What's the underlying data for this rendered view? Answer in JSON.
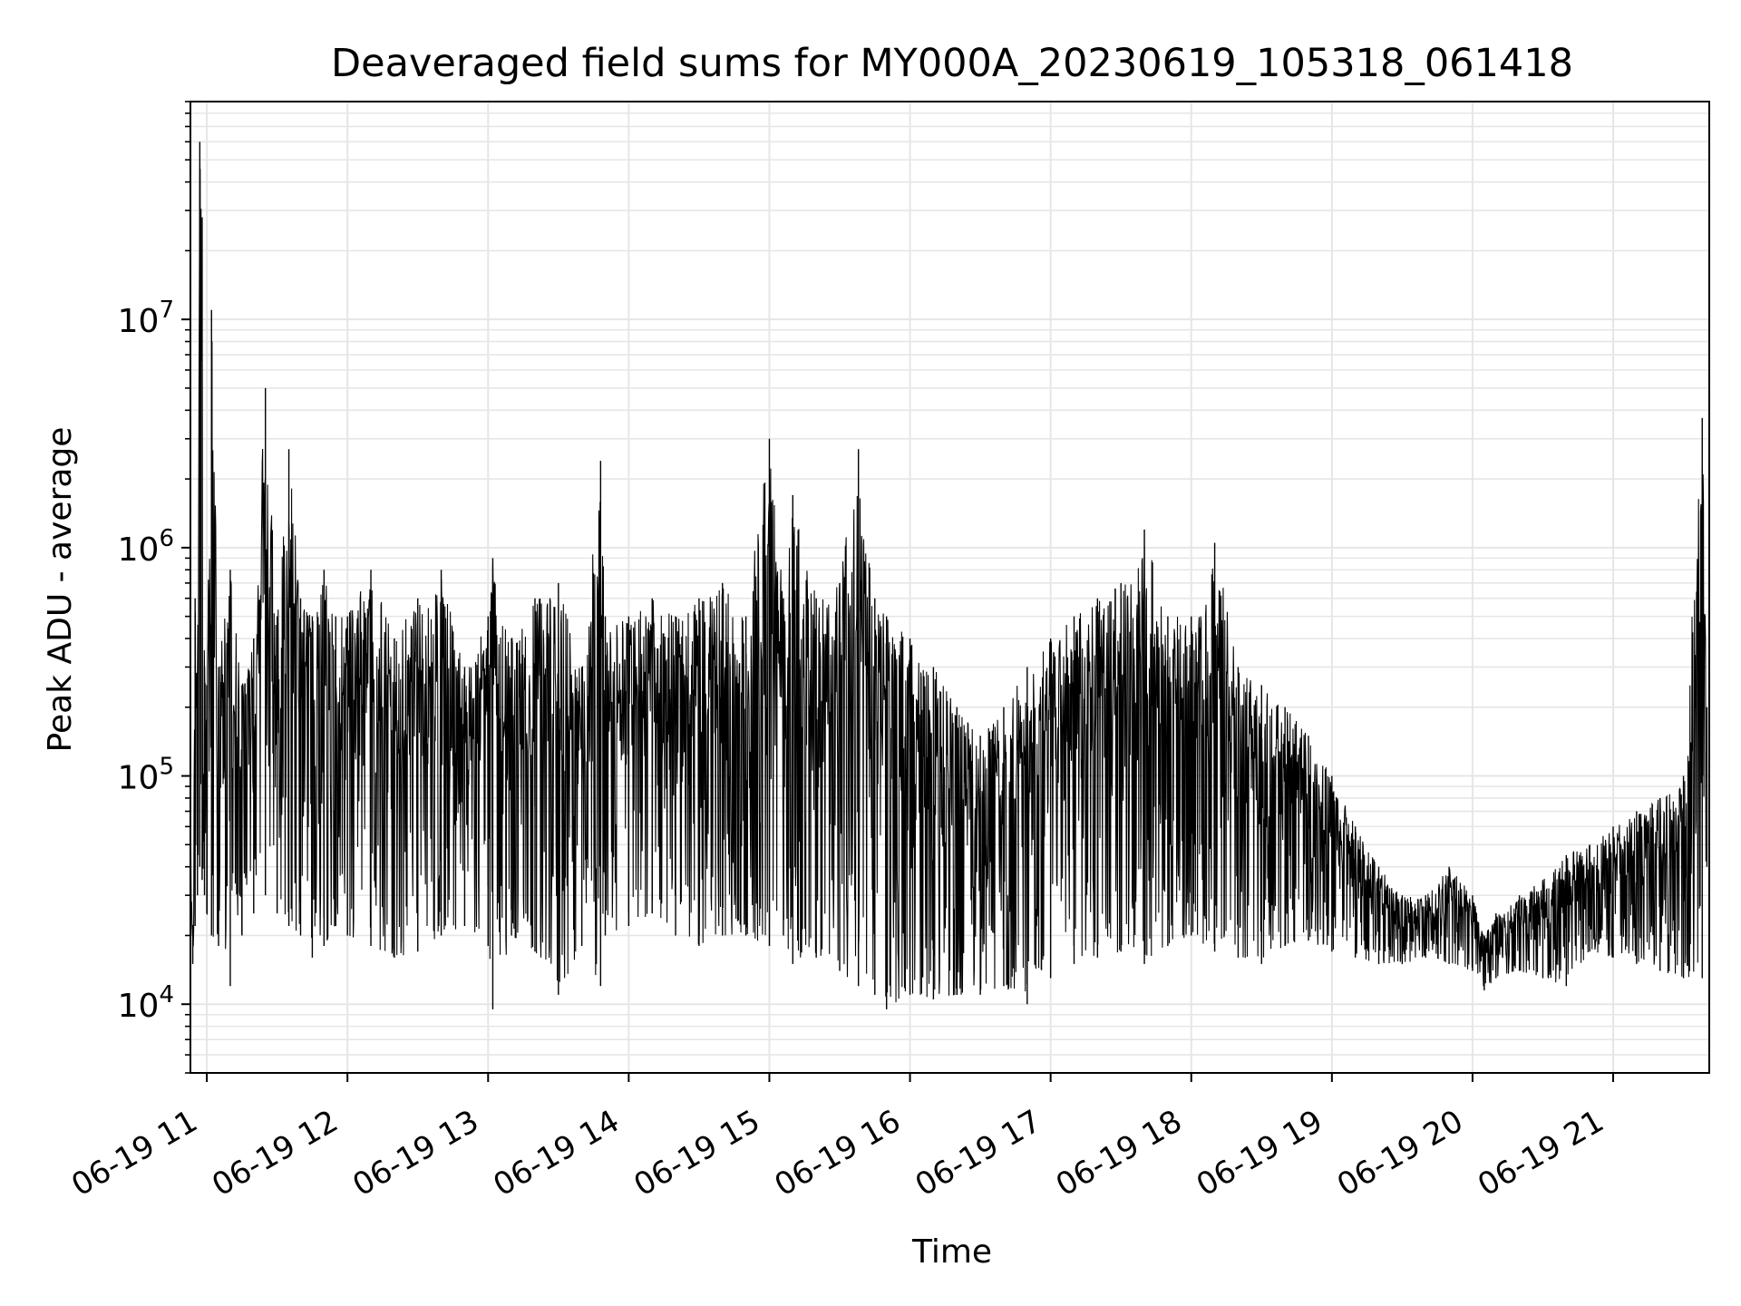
{
  "chart_data": {
    "type": "line",
    "title": "Deaveraged field sums for MY000A_20230619_105318_061418",
    "xlabel": "Time",
    "ylabel": "Peak ADU - average",
    "yscale": "log",
    "ylim": [
      5000,
      90000000
    ],
    "xlim": [
      "2023-06-19 10:53",
      "2023-06-19 21:41"
    ],
    "grid": true,
    "line_color": "#000000",
    "grid_color": "#e6e6e6",
    "x_ticks": [
      {
        "value": "2023-06-19 11:00",
        "label": "06-19 11"
      },
      {
        "value": "2023-06-19 12:00",
        "label": "06-19 12"
      },
      {
        "value": "2023-06-19 13:00",
        "label": "06-19 13"
      },
      {
        "value": "2023-06-19 14:00",
        "label": "06-19 14"
      },
      {
        "value": "2023-06-19 15:00",
        "label": "06-19 15"
      },
      {
        "value": "2023-06-19 16:00",
        "label": "06-19 16"
      },
      {
        "value": "2023-06-19 17:00",
        "label": "06-19 17"
      },
      {
        "value": "2023-06-19 18:00",
        "label": "06-19 18"
      },
      {
        "value": "2023-06-19 19:00",
        "label": "06-19 19"
      },
      {
        "value": "2023-06-19 20:00",
        "label": "06-19 20"
      },
      {
        "value": "2023-06-19 21:00",
        "label": "06-19 21"
      }
    ],
    "y_ticks": [
      {
        "value": 10000,
        "base": "10",
        "exp": "4"
      },
      {
        "value": 100000,
        "base": "10",
        "exp": "5"
      },
      {
        "value": 1000000,
        "base": "10",
        "exp": "6"
      },
      {
        "value": 10000000,
        "base": "10",
        "exp": "7"
      }
    ],
    "series": [
      {
        "x": [
          "2023-06-19 10:53",
          "2023-06-19 10:54",
          "2023-06-19 10:55",
          "2023-06-19 10:56",
          "2023-06-19 10:57",
          "2023-06-19 10:58",
          "2023-06-19 10:59",
          "2023-06-19 11:00",
          "2023-06-19 11:02",
          "2023-06-19 11:05",
          "2023-06-19 11:10",
          "2023-06-19 11:15",
          "2023-06-19 11:20",
          "2023-06-19 11:25",
          "2023-06-19 11:30",
          "2023-06-19 11:35",
          "2023-06-19 11:40",
          "2023-06-19 11:45",
          "2023-06-19 11:50",
          "2023-06-19 11:55",
          "2023-06-19 12:00",
          "2023-06-19 12:10",
          "2023-06-19 12:20",
          "2023-06-19 12:30",
          "2023-06-19 12:40",
          "2023-06-19 12:50",
          "2023-06-19 13:00",
          "2023-06-19 13:02",
          "2023-06-19 13:10",
          "2023-06-19 13:20",
          "2023-06-19 13:30",
          "2023-06-19 13:40",
          "2023-06-19 13:48",
          "2023-06-19 13:50",
          "2023-06-19 14:00",
          "2023-06-19 14:10",
          "2023-06-19 14:20",
          "2023-06-19 14:30",
          "2023-06-19 14:40",
          "2023-06-19 14:50",
          "2023-06-19 15:00",
          "2023-06-19 15:06",
          "2023-06-19 15:10",
          "2023-06-19 15:20",
          "2023-06-19 15:30",
          "2023-06-19 15:38",
          "2023-06-19 15:45",
          "2023-06-19 15:50",
          "2023-06-19 16:00",
          "2023-06-19 16:10",
          "2023-06-19 16:20",
          "2023-06-19 16:30",
          "2023-06-19 16:40",
          "2023-06-19 16:50",
          "2023-06-19 17:00",
          "2023-06-19 17:10",
          "2023-06-19 17:20",
          "2023-06-19 17:30",
          "2023-06-19 17:40",
          "2023-06-19 17:50",
          "2023-06-19 18:00",
          "2023-06-19 18:10",
          "2023-06-19 18:20",
          "2023-06-19 18:30",
          "2023-06-19 18:40",
          "2023-06-19 18:50",
          "2023-06-19 19:00",
          "2023-06-19 19:10",
          "2023-06-19 19:20",
          "2023-06-19 19:30",
          "2023-06-19 19:40",
          "2023-06-19 19:50",
          "2023-06-19 20:00",
          "2023-06-19 20:05",
          "2023-06-19 20:10",
          "2023-06-19 20:20",
          "2023-06-19 20:30",
          "2023-06-19 20:40",
          "2023-06-19 20:50",
          "2023-06-19 21:00",
          "2023-06-19 21:10",
          "2023-06-19 21:20",
          "2023-06-19 21:30",
          "2023-06-19 21:38",
          "2023-06-19 21:40"
        ],
        "y": [
          60000,
          20000,
          600000,
          250000,
          60000000,
          28000000,
          300000,
          250000,
          11000000,
          300000,
          800000,
          250000,
          400000,
          5000000,
          500000,
          2700000,
          600000,
          500000,
          800000,
          500000,
          500000,
          800000,
          400000,
          600000,
          800000,
          300000,
          500000,
          900000,
          400000,
          600000,
          700000,
          300000,
          2400000,
          500000,
          500000,
          600000,
          500000,
          600000,
          700000,
          500000,
          3000000,
          600000,
          1700000,
          600000,
          700000,
          2700000,
          600000,
          500000,
          400000,
          300000,
          200000,
          150000,
          200000,
          300000,
          400000,
          500000,
          600000,
          700000,
          1200000,
          500000,
          500000,
          1050000,
          300000,
          250000,
          200000,
          150000,
          100000,
          60000,
          40000,
          30000,
          30000,
          40000,
          30000,
          20000,
          25000,
          30000,
          35000,
          45000,
          50000,
          60000,
          70000,
          80000,
          100000,
          3700000,
          200000
        ],
        "y_low": [
          16000,
          15000,
          22000,
          30000,
          40000,
          35000,
          30000,
          25000,
          20000,
          18000,
          12000,
          20000,
          25000,
          30000,
          25000,
          22000,
          20000,
          16000,
          18000,
          22000,
          20000,
          18000,
          16000,
          17000,
          20000,
          22000,
          18000,
          9500,
          20000,
          17000,
          11000,
          18000,
          12000,
          20000,
          22000,
          25000,
          20000,
          18000,
          20000,
          20000,
          18000,
          20000,
          15000,
          16000,
          14000,
          12000,
          11000,
          9500,
          11000,
          10500,
          11000,
          11000,
          12000,
          10000,
          13000,
          15000,
          16000,
          17000,
          15000,
          18000,
          20000,
          17000,
          16000,
          15000,
          18000,
          19000,
          17000,
          16000,
          15000,
          15000,
          16000,
          15000,
          14000,
          11500,
          13000,
          14000,
          13000,
          12000,
          17000,
          16000,
          15000,
          14000,
          13000,
          13000,
          40000
        ]
      }
    ]
  }
}
